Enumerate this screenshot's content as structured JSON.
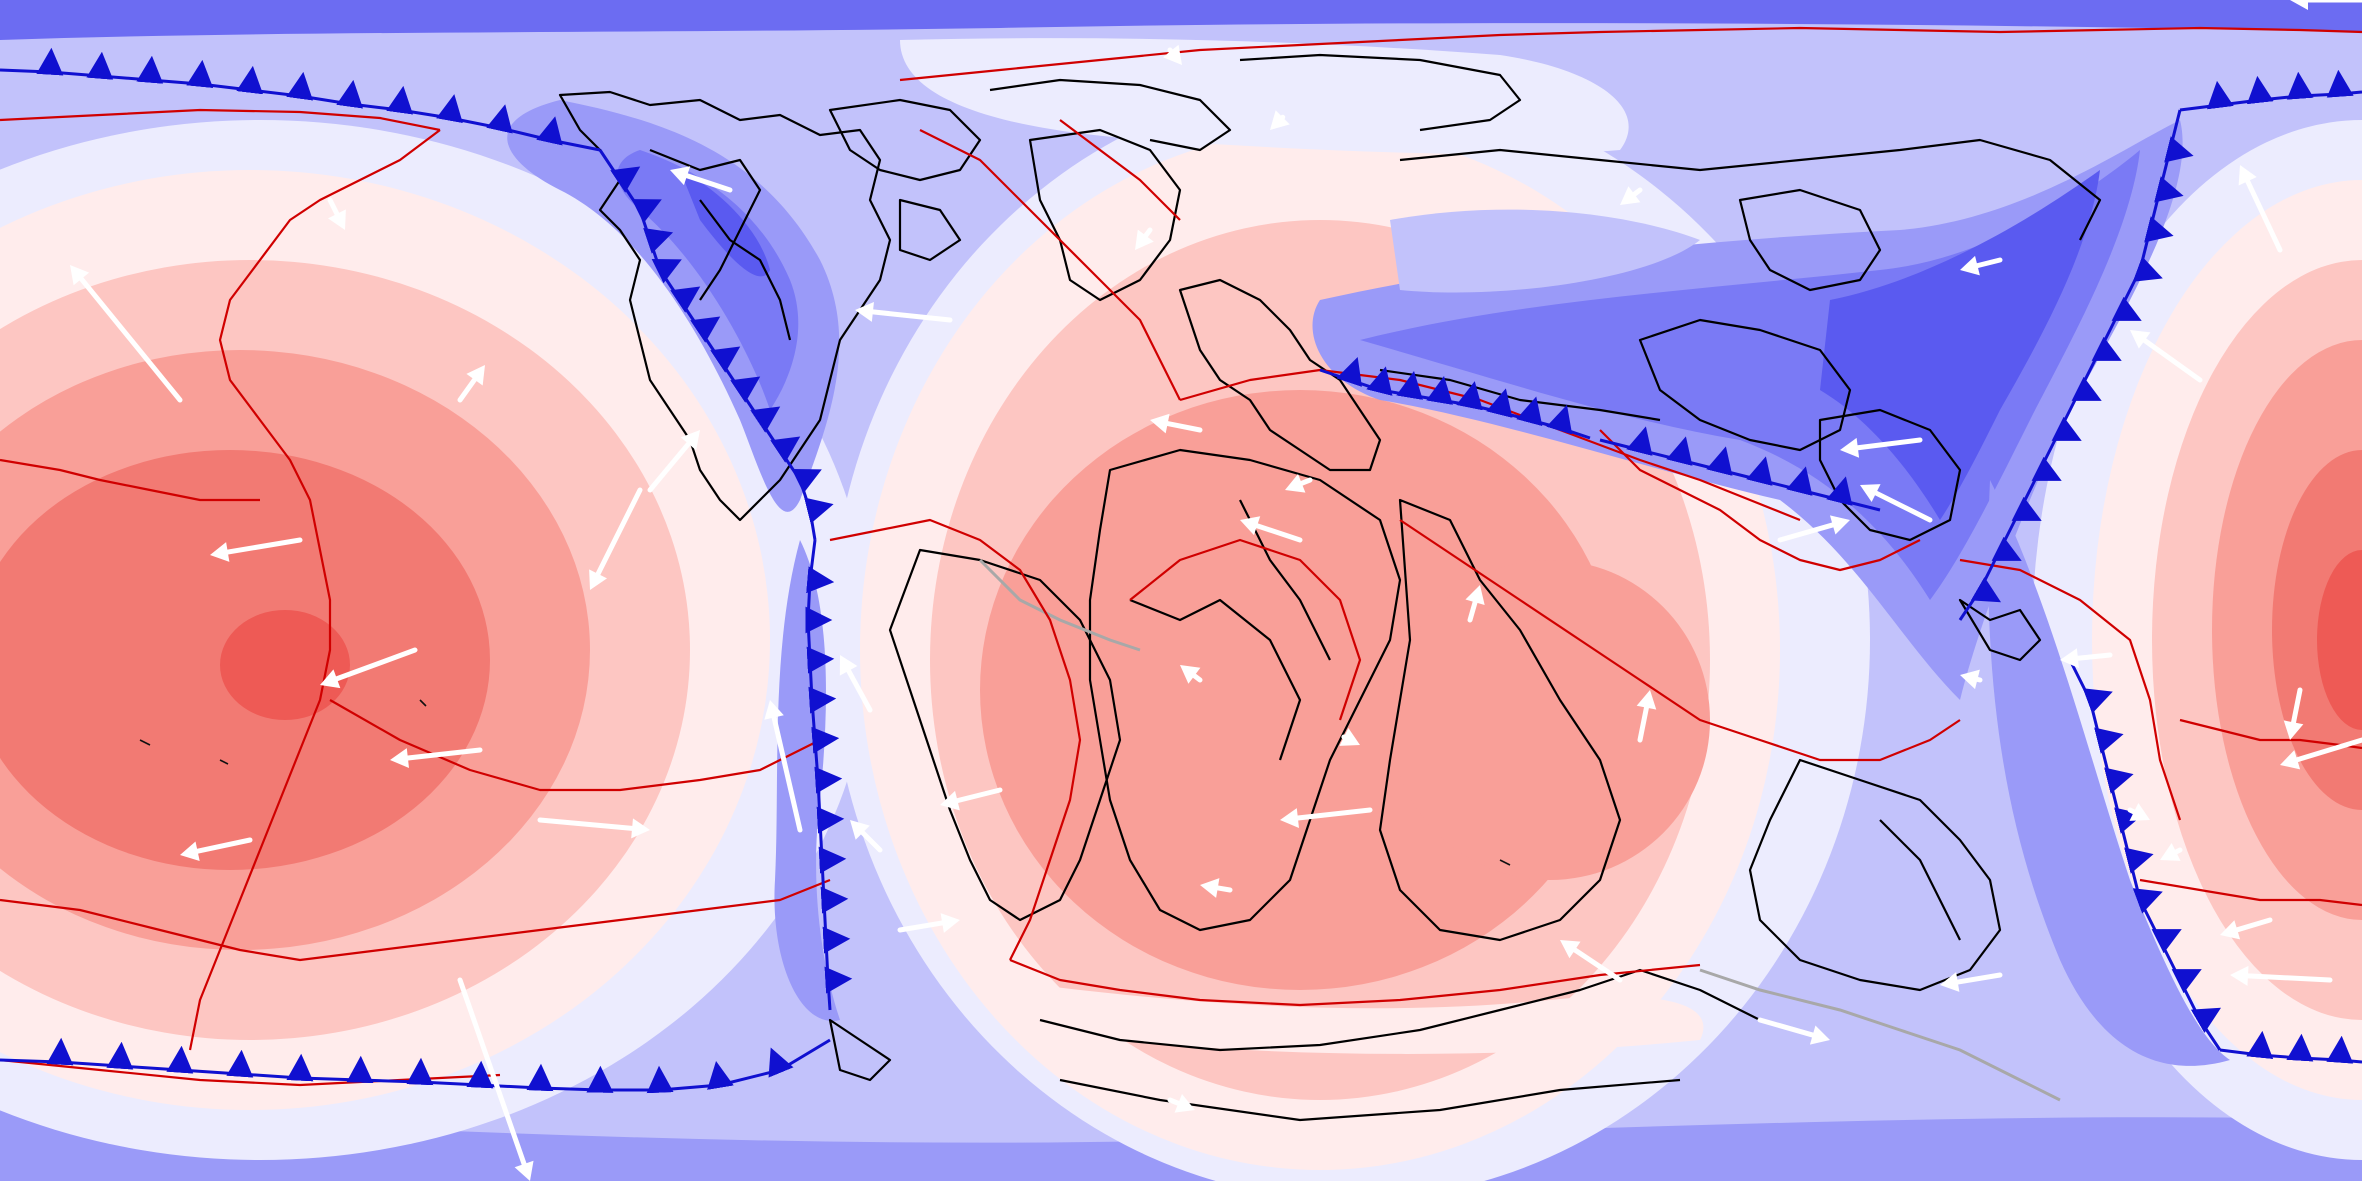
{
  "map": {
    "projection": "equirectangular",
    "layers": [
      "dynamic-topography-contours",
      "coastlines",
      "plate-boundaries",
      "subduction-zones",
      "plate-velocity-vectors"
    ]
  },
  "colors": {
    "band_ramp": [
      "#5a5af0",
      "#7a7af5",
      "#9a9af8",
      "#c2c2fb",
      "#ececfe",
      "#ffecec",
      "#fdc6c2",
      "#f99f98",
      "#f27a73",
      "#ee5a55"
    ],
    "ocean_base": "#dcdcfd",
    "coastline": "#000000",
    "plate_boundary": "#d00000",
    "subduction_zone": "#1010d0",
    "velocity_vector": "#ffffff",
    "inactive_feature": "#a8a8a8"
  },
  "icons": {
    "subduction_teeth": "triangle-teeth-icon",
    "velocity": "arrow-icon"
  }
}
